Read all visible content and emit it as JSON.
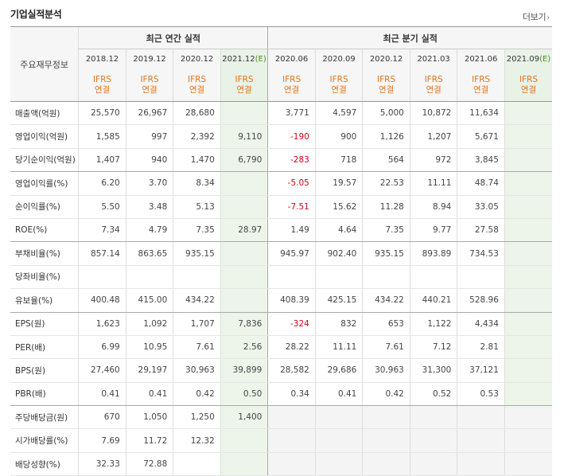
{
  "header": {
    "title": "기업실적분석",
    "more_label": "더보기",
    "more_icon": "chevron-right-icon"
  },
  "table": {
    "row_header_label": "주요재무정보",
    "annual_group_label": "최근 연간 실적",
    "quarter_group_label": "최근 분기 실적",
    "annual_dates": [
      "2018.12",
      "2019.12",
      "2020.12",
      "2021.12"
    ],
    "quarter_dates": [
      "2020.06",
      "2020.09",
      "2020.12",
      "2021.03",
      "2021.06",
      "2021.09"
    ],
    "estimate_suffix": "(E)",
    "ifrs_top": "IFRS",
    "ifrs_bottom": "연결",
    "rows": [
      {
        "label": "매출액(억원)",
        "values": [
          "25,570",
          "26,967",
          "28,680",
          "",
          "3,771",
          "4,597",
          "5,000",
          "10,872",
          "11,634",
          ""
        ]
      },
      {
        "label": "영업이익(억원)",
        "values": [
          "1,585",
          "997",
          "2,392",
          "9,110",
          "-190",
          "900",
          "1,126",
          "1,207",
          "5,671",
          ""
        ]
      },
      {
        "label": "당기순이익(억원)",
        "values": [
          "1,407",
          "940",
          "1,470",
          "6,790",
          "-283",
          "718",
          "564",
          "972",
          "3,845",
          ""
        ]
      },
      {
        "label": "영업이익률(%)",
        "values": [
          "6.20",
          "3.70",
          "8.34",
          "",
          "-5.05",
          "19.57",
          "22.53",
          "11.11",
          "48.74",
          ""
        ]
      },
      {
        "label": "순이익률(%)",
        "values": [
          "5.50",
          "3.48",
          "5.13",
          "",
          "-7.51",
          "15.62",
          "11.28",
          "8.94",
          "33.05",
          ""
        ]
      },
      {
        "label": "ROE(%)",
        "values": [
          "7.34",
          "4.79",
          "7.35",
          "28.97",
          "1.49",
          "4.64",
          "7.35",
          "9.77",
          "27.58",
          ""
        ]
      },
      {
        "label": "부채비율(%)",
        "values": [
          "857.14",
          "863.65",
          "935.15",
          "",
          "945.97",
          "902.40",
          "935.15",
          "893.89",
          "734.53",
          ""
        ]
      },
      {
        "label": "당좌비율(%)",
        "values": [
          "",
          "",
          "",
          "",
          "",
          "",
          "",
          "",
          "",
          ""
        ]
      },
      {
        "label": "유보율(%)",
        "values": [
          "400.48",
          "415.00",
          "434.22",
          "",
          "408.39",
          "425.15",
          "434.22",
          "440.21",
          "528.96",
          ""
        ]
      },
      {
        "label": "EPS(원)",
        "values": [
          "1,623",
          "1,092",
          "1,707",
          "7,836",
          "-324",
          "832",
          "653",
          "1,122",
          "4,434",
          ""
        ]
      },
      {
        "label": "PER(배)",
        "values": [
          "6.99",
          "10.95",
          "7.61",
          "2.56",
          "28.22",
          "11.11",
          "7.61",
          "7.12",
          "2.81",
          ""
        ]
      },
      {
        "label": "BPS(원)",
        "values": [
          "27,460",
          "29,197",
          "30,963",
          "39,899",
          "28,582",
          "29,686",
          "30,963",
          "31,300",
          "37,121",
          ""
        ]
      },
      {
        "label": "PBR(배)",
        "values": [
          "0.41",
          "0.41",
          "0.42",
          "0.50",
          "0.34",
          "0.41",
          "0.42",
          "0.52",
          "0.53",
          ""
        ]
      },
      {
        "label": "주당배당금(원)",
        "values": [
          "670",
          "1,050",
          "1,250",
          "1,400",
          "",
          "",
          "",
          "",
          "",
          ""
        ]
      },
      {
        "label": "시가배당률(%)",
        "values": [
          "7.69",
          "11.72",
          "12.32",
          "",
          "",
          "",
          "",
          "",
          "",
          ""
        ]
      },
      {
        "label": "배당성향(%)",
        "values": [
          "32.33",
          "72.88",
          "",
          "",
          "",
          "",
          "",
          "",
          "",
          ""
        ]
      }
    ]
  },
  "colors": {
    "negative": "#d0021b",
    "ifrs": "#e0731a",
    "estimate_bg": "#edf5ea"
  }
}
